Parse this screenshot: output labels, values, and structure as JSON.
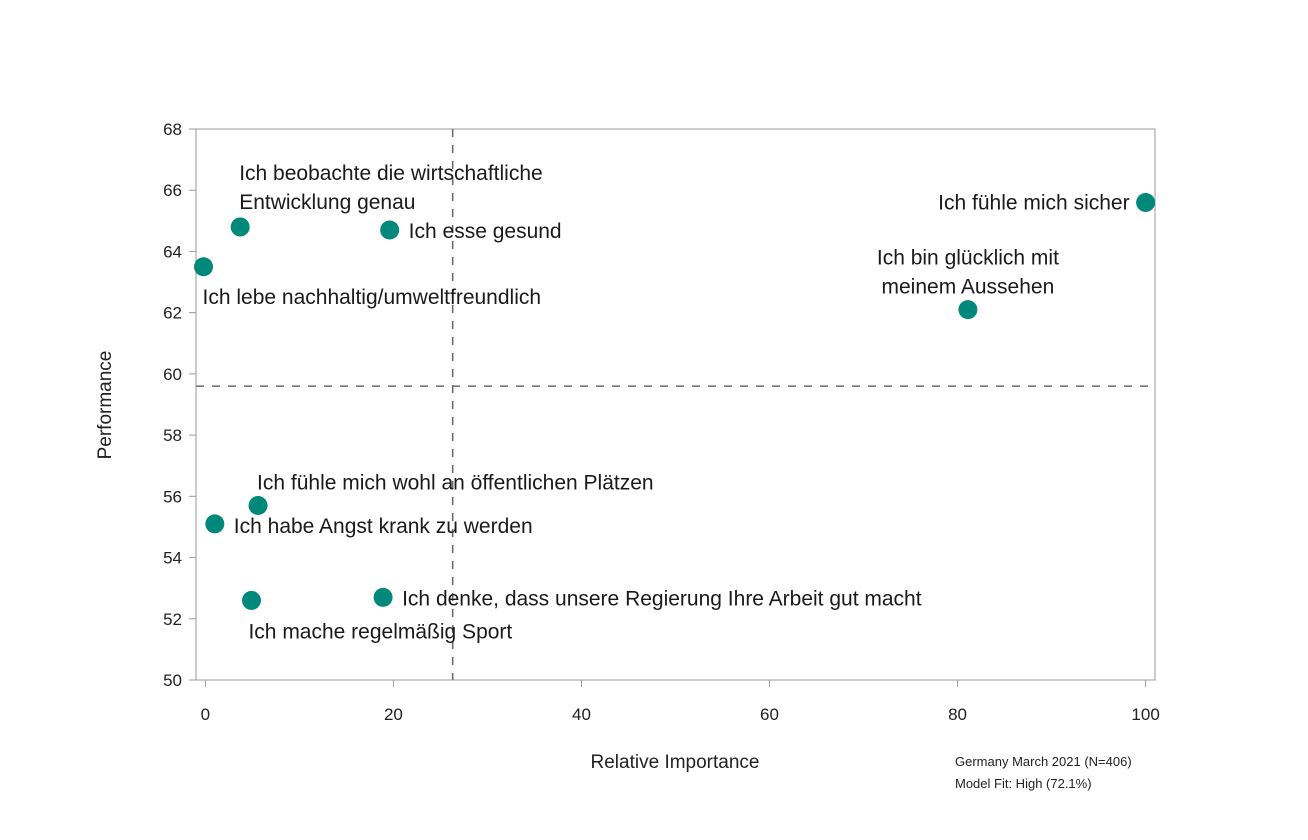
{
  "chart_data": {
    "type": "scatter",
    "xlabel": "Relative Importance",
    "ylabel": "Performance",
    "xlim": [
      -1,
      101
    ],
    "ylim": [
      50,
      68
    ],
    "xticks": [
      0,
      20,
      40,
      60,
      80,
      100
    ],
    "yticks": [
      50,
      52,
      54,
      56,
      58,
      60,
      62,
      64,
      66,
      68
    ],
    "reference_lines": {
      "x": 26.3,
      "y": 59.6
    },
    "marker_color": "#00897b",
    "grid": false,
    "points": [
      {
        "label_lines": [
          "Ich fühle mich sicher"
        ],
        "x": 100,
        "y": 65.6
      },
      {
        "label_lines": [
          "Ich bin glücklich mit",
          "meinem Aussehen"
        ],
        "x": 81.1,
        "y": 62.1
      },
      {
        "label_lines": [
          "Ich beobachte die wirtschaftliche",
          "Entwicklung genau"
        ],
        "x": 3.7,
        "y": 64.8
      },
      {
        "label_lines": [
          "Ich esse gesund"
        ],
        "x": 19.6,
        "y": 64.7
      },
      {
        "label_lines": [
          "Ich lebe nachhaltig/umweltfreundlich"
        ],
        "x": -0.2,
        "y": 63.5
      },
      {
        "label_lines": [
          "Ich fühle mich wohl an öffentlichen Plätzen"
        ],
        "x": 5.6,
        "y": 55.7
      },
      {
        "label_lines": [
          "Ich habe Angst krank zu werden"
        ],
        "x": 1.0,
        "y": 55.1
      },
      {
        "label_lines": [
          "Ich mache regelmäßig Sport"
        ],
        "x": 4.9,
        "y": 52.6
      },
      {
        "label_lines": [
          "Ich denke, dass unsere Regierung Ihre Arbeit gut macht"
        ],
        "x": 18.9,
        "y": 52.7
      }
    ],
    "annotations": [
      "Germany March 2021 (N=406)",
      "Model Fit: High (72.1%)"
    ]
  }
}
